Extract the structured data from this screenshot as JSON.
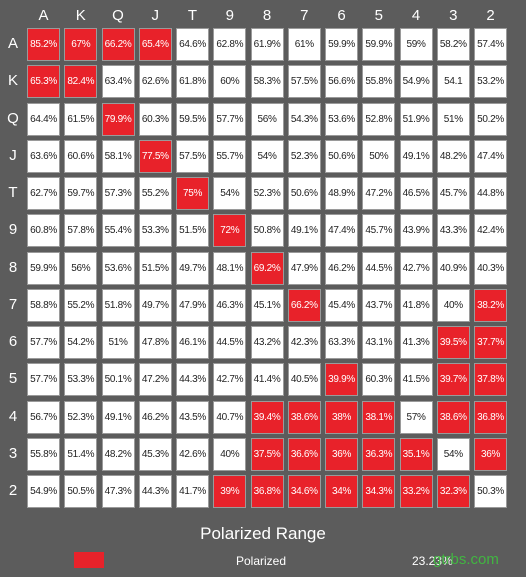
{
  "ranks": [
    "A",
    "K",
    "Q",
    "J",
    "T",
    "9",
    "8",
    "7",
    "6",
    "5",
    "4",
    "3",
    "2"
  ],
  "cells": [
    [
      "85.2%",
      "67%",
      "66.2%",
      "65.4%",
      "64.6%",
      "62.8%",
      "61.9%",
      "61%",
      "59.9%",
      "59.9%",
      "59%",
      "58.2%",
      "57.4%"
    ],
    [
      "65.3%",
      "82.4%",
      "63.4%",
      "62.6%",
      "61.8%",
      "60%",
      "58.3%",
      "57.5%",
      "56.6%",
      "55.8%",
      "54.9%",
      "54.1",
      "53.2%"
    ],
    [
      "64.4%",
      "61.5%",
      "79.9%",
      "60.3%",
      "59.5%",
      "57.7%",
      "56%",
      "54.3%",
      "53.6%",
      "52.8%",
      "51.9%",
      "51%",
      "50.2%"
    ],
    [
      "63.6%",
      "60.6%",
      "58.1%",
      "77.5%",
      "57.5%",
      "55.7%",
      "54%",
      "52.3%",
      "50.6%",
      "50%",
      "49.1%",
      "48.2%",
      "47.4%"
    ],
    [
      "62.7%",
      "59.7%",
      "57.3%",
      "55.2%",
      "75%",
      "54%",
      "52.3%",
      "50.6%",
      "48.9%",
      "47.2%",
      "46.5%",
      "45.7%",
      "44.8%"
    ],
    [
      "60.8%",
      "57.8%",
      "55.4%",
      "53.3%",
      "51.5%",
      "72%",
      "50.8%",
      "49.1%",
      "47.4%",
      "45.7%",
      "43.9%",
      "43.3%",
      "42.4%"
    ],
    [
      "59.9%",
      "56%",
      "53.6%",
      "51.5%",
      "49.7%",
      "48.1%",
      "69.2%",
      "47.9%",
      "46.2%",
      "44.5%",
      "42.7%",
      "40.9%",
      "40.3%"
    ],
    [
      "58.8%",
      "55.2%",
      "51.8%",
      "49.7%",
      "47.9%",
      "46.3%",
      "45.1%",
      "66.2%",
      "45.4%",
      "43.7%",
      "41.8%",
      "40%",
      "38.2%"
    ],
    [
      "57.7%",
      "54.2%",
      "51%",
      "47.8%",
      "46.1%",
      "44.5%",
      "43.2%",
      "42.3%",
      "63.3%",
      "43.1%",
      "41.3%",
      "39.5%",
      "37.7%"
    ],
    [
      "57.7%",
      "53.3%",
      "50.1%",
      "47.2%",
      "44.3%",
      "42.7%",
      "41.4%",
      "40.5%",
      "39.9%",
      "60.3%",
      "41.5%",
      "39.7%",
      "37.8%"
    ],
    [
      "56.7%",
      "52.3%",
      "49.1%",
      "46.2%",
      "43.5%",
      "40.7%",
      "39.4%",
      "38.6%",
      "38%",
      "38.1%",
      "57%",
      "38.6%",
      "36.8%"
    ],
    [
      "55.8%",
      "51.4%",
      "48.2%",
      "45.3%",
      "42.6%",
      "40%",
      "37.5%",
      "36.6%",
      "36%",
      "36.3%",
      "35.1%",
      "54%",
      "36%"
    ],
    [
      "54.9%",
      "50.5%",
      "47.3%",
      "44.3%",
      "41.7%",
      "39%",
      "36.8%",
      "34.6%",
      "34%",
      "34.3%",
      "33.2%",
      "32.3%",
      "50.3%"
    ]
  ],
  "polarized": [
    [
      0,
      0
    ],
    [
      0,
      1
    ],
    [
      0,
      2
    ],
    [
      0,
      3
    ],
    [
      1,
      0
    ],
    [
      1,
      1
    ],
    [
      2,
      2
    ],
    [
      3,
      3
    ],
    [
      4,
      4
    ],
    [
      5,
      5
    ],
    [
      6,
      6
    ],
    [
      7,
      7
    ],
    [
      7,
      12
    ],
    [
      8,
      11
    ],
    [
      8,
      12
    ],
    [
      9,
      8
    ],
    [
      9,
      11
    ],
    [
      9,
      12
    ],
    [
      10,
      6
    ],
    [
      10,
      7
    ],
    [
      10,
      8
    ],
    [
      10,
      9
    ],
    [
      10,
      11
    ],
    [
      10,
      12
    ],
    [
      11,
      6
    ],
    [
      11,
      7
    ],
    [
      11,
      8
    ],
    [
      11,
      9
    ],
    [
      11,
      10
    ],
    [
      11,
      12
    ],
    [
      12,
      5
    ],
    [
      12,
      6
    ],
    [
      12,
      7
    ],
    [
      12,
      8
    ],
    [
      12,
      9
    ],
    [
      12,
      10
    ],
    [
      12,
      11
    ]
  ],
  "title": "Polarized Range",
  "legend": {
    "label": "Polarized",
    "value": "23.23%",
    "swatch_color": "#e8222a"
  },
  "watermark": "gtrbs.com",
  "colors": {
    "background": "#5c5c5c",
    "cell": "#ffffff",
    "polarized": "#e8222a"
  }
}
